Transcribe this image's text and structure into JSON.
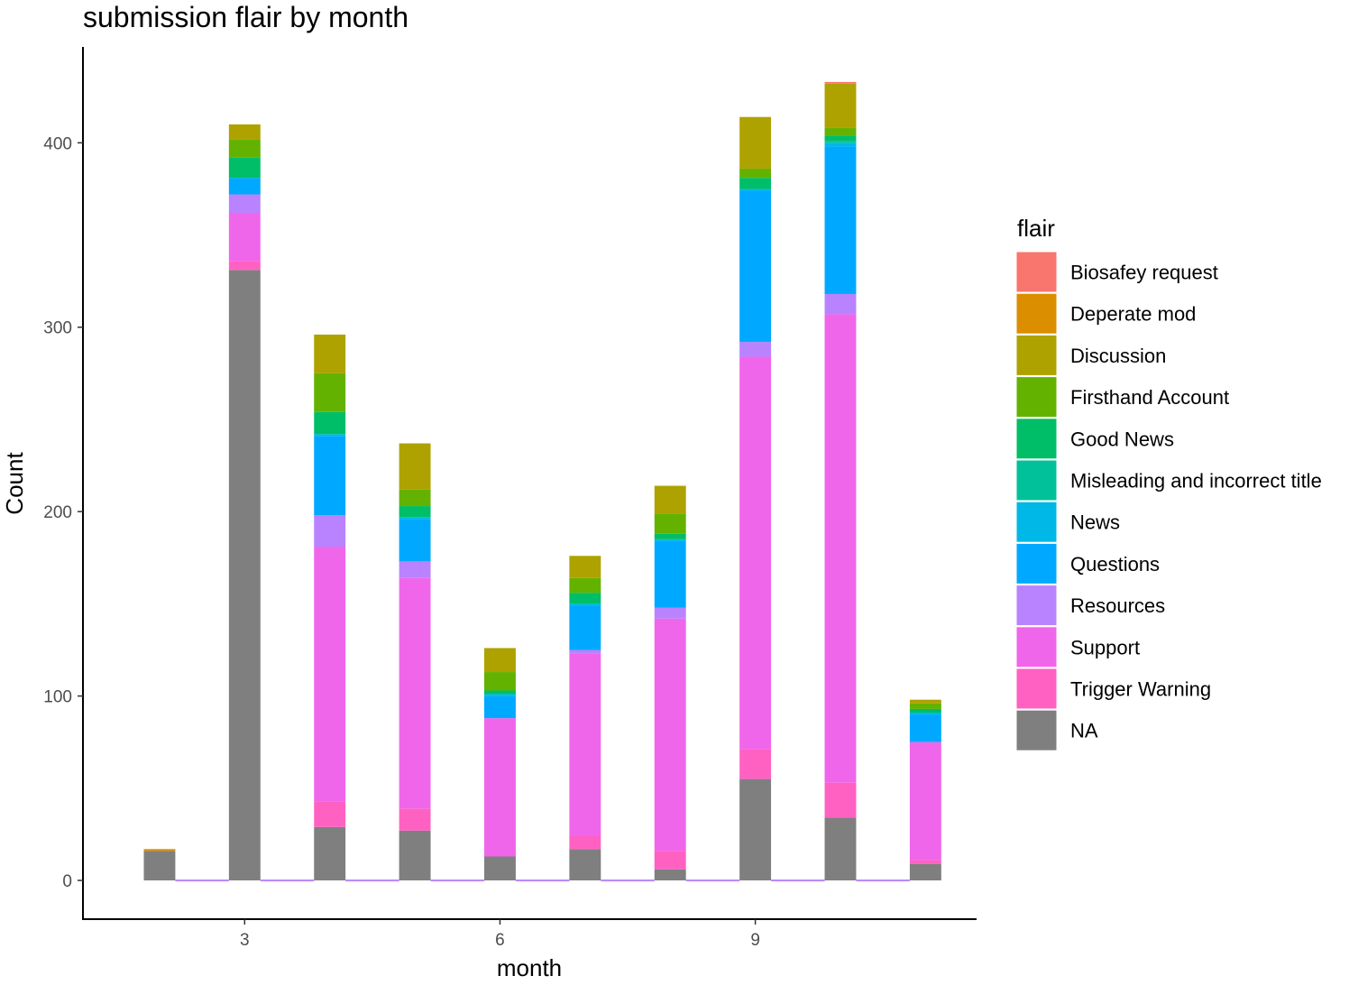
{
  "chart_data": {
    "type": "bar",
    "stacked": true,
    "title": "submission flair by month",
    "xlabel": "month",
    "ylabel": "Count",
    "x_ticks": [
      3,
      6,
      9
    ],
    "y_ticks": [
      0,
      100,
      200,
      300,
      400
    ],
    "xlim": [
      1.1,
      11.6
    ],
    "ylim": [
      -21,
      452
    ],
    "grid": false,
    "legend": {
      "title": "flair",
      "position": "right"
    },
    "categories": [
      2,
      3,
      4,
      5,
      6,
      7,
      8,
      9,
      10,
      11
    ],
    "series": [
      {
        "name": "NA",
        "color": "#7F7F7F",
        "values": [
          16,
          331,
          29,
          27,
          13,
          17,
          6,
          55,
          34,
          9
        ]
      },
      {
        "name": "Trigger Warning",
        "color": "#FF61C3",
        "values": [
          0,
          5,
          14,
          12,
          0,
          7,
          10,
          16,
          19,
          2
        ]
      },
      {
        "name": "Support",
        "color": "#F066EA",
        "values": [
          0,
          26,
          138,
          125,
          75,
          99,
          126,
          213,
          254,
          64
        ]
      },
      {
        "name": "Resources",
        "color": "#B983FF",
        "values": [
          0,
          10,
          17,
          9,
          0,
          2,
          6,
          8,
          11,
          0
        ]
      },
      {
        "name": "Questions",
        "color": "#00A9FF",
        "values": [
          0,
          9,
          43,
          23,
          12,
          24,
          36,
          82,
          80,
          15
        ]
      },
      {
        "name": "News",
        "color": "#00B8E7",
        "values": [
          0,
          0,
          1,
          1,
          1,
          1,
          1,
          1,
          2,
          1
        ]
      },
      {
        "name": "Misleading and incorrect title",
        "color": "#00C19A",
        "values": [
          0,
          0,
          0,
          0,
          0,
          0,
          0,
          0,
          1,
          0
        ]
      },
      {
        "name": "Good News",
        "color": "#00BE67",
        "values": [
          0,
          11,
          12,
          6,
          2,
          6,
          3,
          6,
          3,
          2
        ]
      },
      {
        "name": "Firsthand Account",
        "color": "#64B200",
        "values": [
          0,
          10,
          21,
          9,
          10,
          8,
          11,
          5,
          4,
          3
        ]
      },
      {
        "name": "Discussion",
        "color": "#AEA200",
        "values": [
          0,
          8,
          21,
          25,
          13,
          12,
          15,
          28,
          24,
          2
        ]
      },
      {
        "name": "Deperate mod",
        "color": "#DB8E00",
        "values": [
          1,
          0,
          0,
          0,
          0,
          0,
          0,
          0,
          0,
          0
        ]
      },
      {
        "name": "Biosafey request",
        "color": "#F8766D",
        "values": [
          0,
          0,
          0,
          0,
          0,
          0,
          0,
          0,
          1,
          0
        ]
      }
    ],
    "legend_order": [
      "Biosafey request",
      "Deperate mod",
      "Discussion",
      "Firsthand Account",
      "Good News",
      "Misleading and incorrect title",
      "News",
      "Questions",
      "Resources",
      "Support",
      "Trigger Warning",
      "NA"
    ],
    "empty_months_baseline_color": "#B983FF"
  }
}
